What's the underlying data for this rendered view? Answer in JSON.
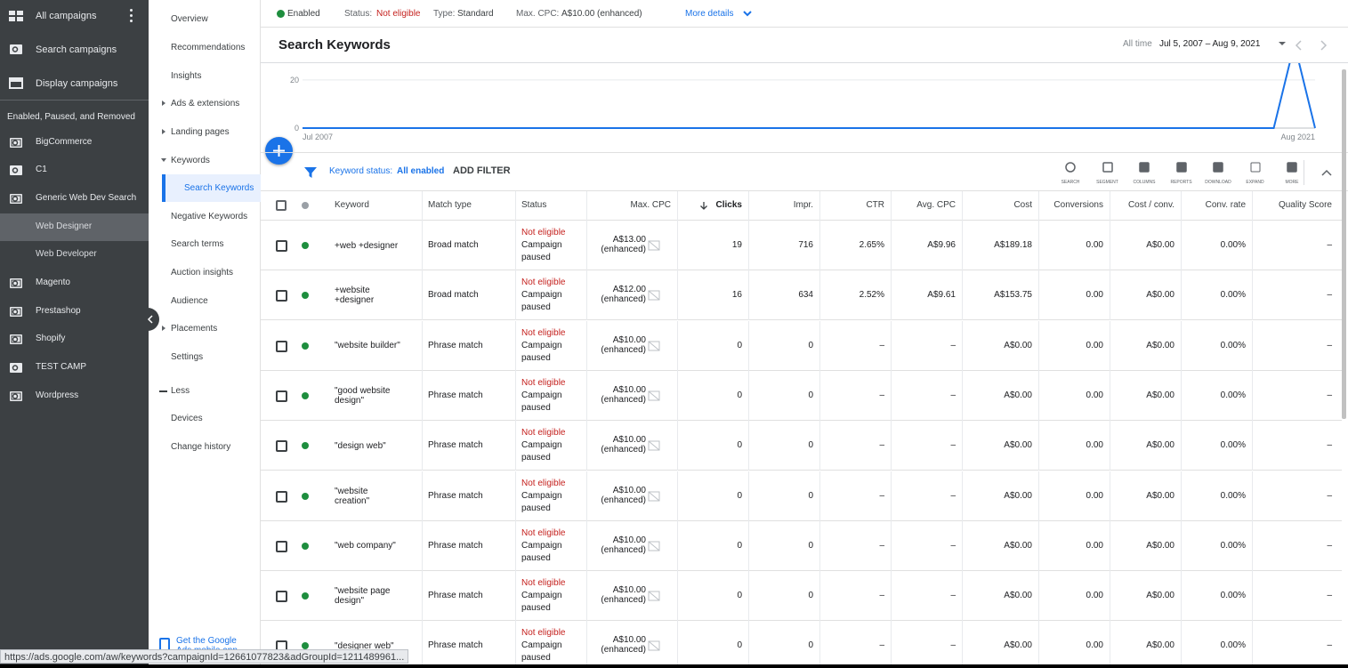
{
  "sidebar": {
    "items": [
      {
        "label": "All campaigns",
        "icon": "grid"
      },
      {
        "label": "Search campaigns",
        "icon": "search"
      },
      {
        "label": "Display campaigns",
        "icon": "display"
      }
    ],
    "section": "Enabled, Paused, and Removed",
    "campaigns": [
      {
        "label": "BigCommerce",
        "icon": "camp"
      },
      {
        "label": "C1",
        "icon": "search"
      },
      {
        "label": "Generic Web Dev Search",
        "icon": "camp"
      },
      {
        "label": "Web Designer",
        "sub": true,
        "selected": true
      },
      {
        "label": "Web Developer",
        "sub": true
      },
      {
        "label": "Magento",
        "icon": "camp"
      },
      {
        "label": "Prestashop",
        "icon": "camp"
      },
      {
        "label": "Shopify",
        "icon": "camp"
      },
      {
        "label": "TEST CAMP",
        "icon": "search"
      },
      {
        "label": "Wordpress",
        "icon": "camp"
      }
    ]
  },
  "nav": {
    "items": [
      {
        "label": "Overview"
      },
      {
        "label": "Recommendations"
      },
      {
        "label": "Insights"
      },
      {
        "label": "Ads & extensions",
        "arrow": "right"
      },
      {
        "label": "Landing pages",
        "arrow": "right"
      },
      {
        "label": "Keywords",
        "arrow": "down"
      },
      {
        "label": "Search Keywords",
        "selected": true
      },
      {
        "label": "Negative Keywords"
      },
      {
        "label": "Search terms"
      },
      {
        "label": "Auction insights"
      },
      {
        "label": "Audience"
      },
      {
        "label": "Placements",
        "arrow": "right"
      },
      {
        "label": "Settings"
      },
      {
        "label": "Less",
        "less": true
      },
      {
        "label": "Devices"
      },
      {
        "label": "Change history"
      }
    ],
    "mobile_app": "Get the Google Ads mobile app"
  },
  "status_bar": {
    "enabled": "Enabled",
    "status_label": "Status:",
    "status": "Not eligible",
    "type_label": "Type:",
    "type": "Standard",
    "cpc_label": "Max. CPC:",
    "cpc": "A$10.00 (enhanced)",
    "more": "More details"
  },
  "header": {
    "title": "Search Keywords",
    "range_label": "All time",
    "range": "Jul 5, 2007 – Aug 9, 2021"
  },
  "chart": {
    "ylim": [
      0,
      27
    ],
    "yticks": [
      0,
      20
    ],
    "x_labels": [
      "Jul 2007",
      "Aug 2021"
    ],
    "color": "#1a73e8",
    "values": [
      0,
      0,
      0,
      0,
      0,
      0,
      0,
      0,
      0,
      0,
      0,
      0,
      0,
      0,
      0,
      0,
      0,
      0,
      0,
      0,
      0,
      0,
      0,
      0,
      0,
      0,
      0,
      0,
      0,
      0,
      0,
      0,
      0,
      0,
      0,
      0,
      0,
      0,
      0,
      0,
      0,
      0,
      0,
      0,
      0,
      0,
      0,
      0,
      35,
      0
    ]
  },
  "filter": {
    "label": "Keyword status:",
    "value": "All enabled",
    "add": "ADD FILTER"
  },
  "toolbar": [
    "SEARCH",
    "SEGMENT",
    "COLUMNS",
    "REPORTS",
    "DOWNLOAD",
    "EXPAND",
    "MORE"
  ],
  "table": {
    "columns": [
      "Keyword",
      "Match type",
      "Status",
      "Max. CPC",
      "Clicks",
      "Impr.",
      "CTR",
      "Avg. CPC",
      "Cost",
      "Conversions",
      "Cost / conv.",
      "Conv. rate",
      "Quality Score"
    ],
    "rows": [
      {
        "keyword": "+web +designer",
        "match_type": "Broad match",
        "status": [
          "Not eligible",
          "Campaign paused"
        ],
        "max_cpc": [
          "A$13.00",
          "(enhanced)"
        ],
        "cells": [
          19,
          716,
          "2.65%",
          "A$9.96",
          "A$189.18",
          "0.00",
          "A$0.00",
          "0.00%",
          "–"
        ]
      },
      {
        "keyword": "+website +designer",
        "match_type": "Broad match",
        "status": [
          "Not eligible",
          "Campaign paused"
        ],
        "max_cpc": [
          "A$12.00",
          "(enhanced)"
        ],
        "cells": [
          16,
          634,
          "2.52%",
          "A$9.61",
          "A$153.75",
          "0.00",
          "A$0.00",
          "0.00%",
          "–"
        ]
      },
      {
        "keyword": "\"website builder\"",
        "match_type": "Phrase match",
        "status": [
          "Not eligible",
          "Campaign paused"
        ],
        "max_cpc": [
          "A$10.00",
          "(enhanced)"
        ],
        "cells": [
          0,
          0,
          "–",
          "–",
          "A$0.00",
          "0.00",
          "A$0.00",
          "0.00%",
          "–"
        ]
      },
      {
        "keyword": "\"good website design\"",
        "match_type": "Phrase match",
        "status": [
          "Not eligible",
          "Campaign paused"
        ],
        "max_cpc": [
          "A$10.00",
          "(enhanced)"
        ],
        "cells": [
          0,
          0,
          "–",
          "–",
          "A$0.00",
          "0.00",
          "A$0.00",
          "0.00%",
          "–"
        ]
      },
      {
        "keyword": "\"design web\"",
        "match_type": "Phrase match",
        "status": [
          "Not eligible",
          "Campaign paused"
        ],
        "max_cpc": [
          "A$10.00",
          "(enhanced)"
        ],
        "cells": [
          0,
          0,
          "–",
          "–",
          "A$0.00",
          "0.00",
          "A$0.00",
          "0.00%",
          "–"
        ]
      },
      {
        "keyword": "\"website creation\"",
        "match_type": "Phrase match",
        "status": [
          "Not eligible",
          "Campaign paused"
        ],
        "max_cpc": [
          "A$10.00",
          "(enhanced)"
        ],
        "cells": [
          0,
          0,
          "–",
          "–",
          "A$0.00",
          "0.00",
          "A$0.00",
          "0.00%",
          "–"
        ]
      },
      {
        "keyword": "\"web company\"",
        "match_type": "Phrase match",
        "status": [
          "Not eligible",
          "Campaign paused"
        ],
        "max_cpc": [
          "A$10.00",
          "(enhanced)"
        ],
        "cells": [
          0,
          0,
          "–",
          "–",
          "A$0.00",
          "0.00",
          "A$0.00",
          "0.00%",
          "–"
        ]
      },
      {
        "keyword": "\"website page design\"",
        "match_type": "Phrase match",
        "status": [
          "Not eligible",
          "Campaign paused"
        ],
        "max_cpc": [
          "A$10.00",
          "(enhanced)"
        ],
        "cells": [
          0,
          0,
          "–",
          "–",
          "A$0.00",
          "0.00",
          "A$0.00",
          "0.00%",
          "–"
        ]
      },
      {
        "keyword": "\"designer web\"",
        "match_type": "Phrase match",
        "status": [
          "Not eligible",
          "Campaign paused"
        ],
        "max_cpc": [
          "A$10.00",
          "(enhanced)"
        ],
        "cells": [
          0,
          0,
          "–",
          "–",
          "A$0.00",
          "0.00",
          "A$0.00",
          "0.00%",
          "–"
        ]
      }
    ]
  },
  "url": "https://ads.google.com/aw/keywords?campaignId=12661077823&adGroupId=1211489961..."
}
